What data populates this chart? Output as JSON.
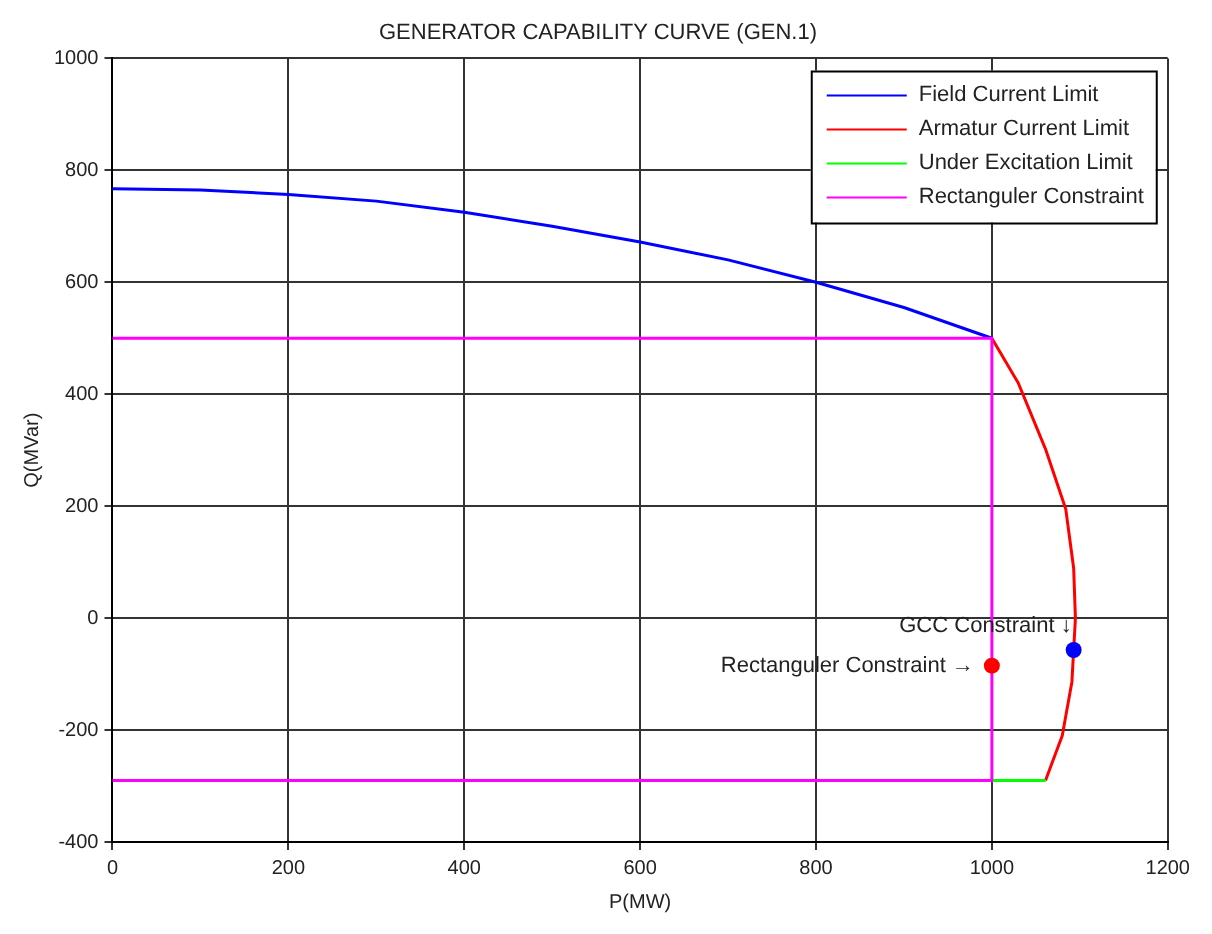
{
  "chart_data": {
    "type": "line",
    "title": "GENERATOR CAPABILITY CURVE (GEN.1)",
    "xlabel": "P(MW)",
    "ylabel": "Q(MVar)",
    "xlim": [
      0,
      1200
    ],
    "xticks": [
      0,
      200,
      400,
      600,
      800,
      1000,
      1200
    ],
    "ylim": [
      -400,
      1000
    ],
    "yticks": [
      -400,
      -200,
      0,
      200,
      400,
      600,
      800,
      1000
    ],
    "grid": true,
    "legend": "top right",
    "marker": "none",
    "line_style": "solid",
    "series": [
      {
        "name": "Field Current Limit",
        "color": "#0000ff",
        "type": "line",
        "x": [
          0,
          100,
          200,
          300,
          400,
          500,
          600,
          700,
          800,
          900,
          1000
        ],
        "values": [
          767,
          765,
          757,
          745,
          725,
          700,
          672,
          640,
          600,
          555,
          500
        ]
      },
      {
        "name": "Armatur Current Limit",
        "color": "#ff0000",
        "type": "line",
        "x": [
          1000,
          1030,
          1061,
          1084,
          1093,
          1095,
          1091,
          1080,
          1061
        ],
        "values": [
          500,
          420,
          302,
          195,
          89,
          0,
          -114,
          -210,
          -290
        ]
      },
      {
        "name": "Under Excitation Limit",
        "color": "#00ff00",
        "type": "line",
        "x": [
          1000,
          1061
        ],
        "values": [
          -290,
          -290
        ]
      },
      {
        "name": "Rectanguler Constraint",
        "color": "#ff00ff",
        "type": "line",
        "x": [
          0,
          1000,
          1000,
          0
        ],
        "values": [
          500,
          500,
          -290,
          -290
        ]
      },
      {
        "color": "#ff0000",
        "type": "scatter",
        "marker": "circle",
        "x": [
          1000
        ],
        "values": [
          -85
        ]
      },
      {
        "color": "#0000ff",
        "type": "scatter",
        "marker": "circle",
        "x": [
          1093
        ],
        "values": [
          -57
        ]
      }
    ],
    "annotations": [
      {
        "text": "GCC Constraint ↓",
        "x": 1093,
        "y": -57
      },
      {
        "text": "Rectanguler Constraint →",
        "x": 1000,
        "y": -85
      }
    ]
  }
}
